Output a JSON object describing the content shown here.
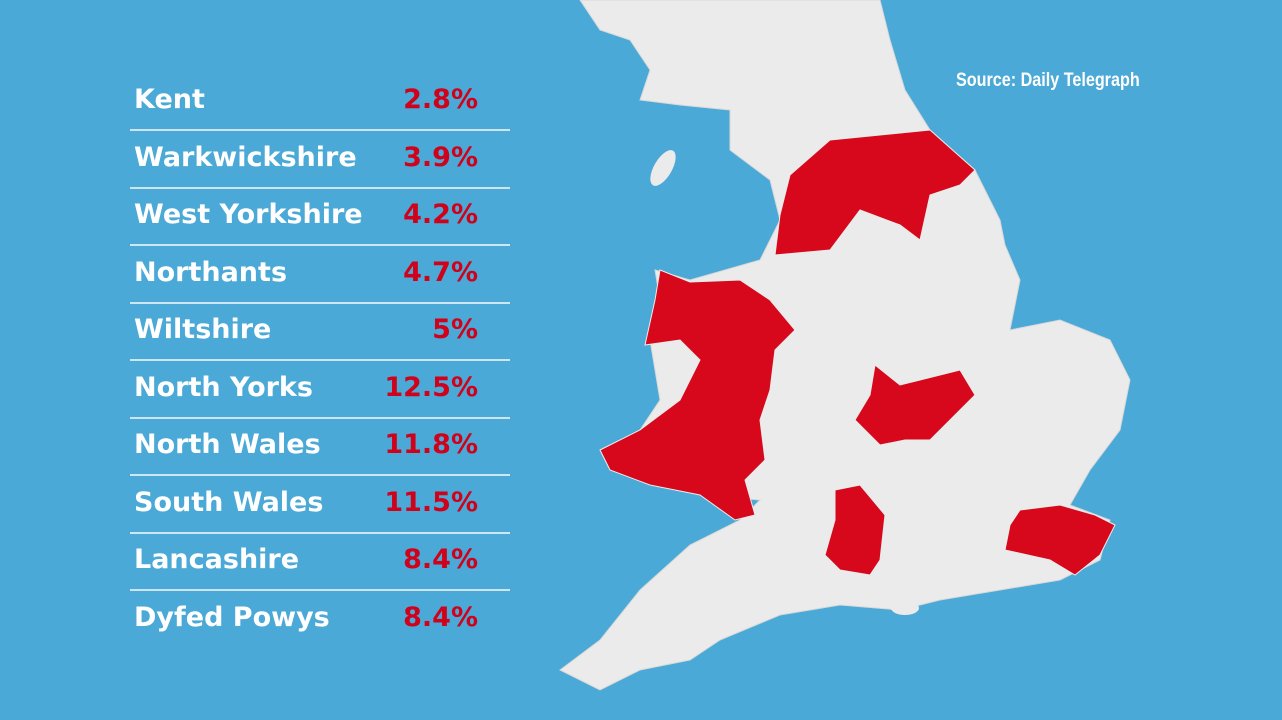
{
  "source": "Source: Daily Telegraph",
  "table": {
    "rows": [
      [
        "Kent",
        "2.8%"
      ],
      [
        "Warkwickshire",
        "3.9%"
      ],
      [
        "West Yorkshire",
        "4.2%"
      ],
      [
        "Northants",
        "4.7%"
      ],
      [
        "Wiltshire",
        "5%"
      ],
      [
        "North Yorks",
        "12.5%"
      ],
      [
        "North Wales",
        "11.8%"
      ],
      [
        "South Wales",
        "11.5%"
      ],
      [
        "Lancashire",
        "8.4%"
      ],
      [
        "Dyfed Powys",
        "8.4%"
      ]
    ]
  }
}
